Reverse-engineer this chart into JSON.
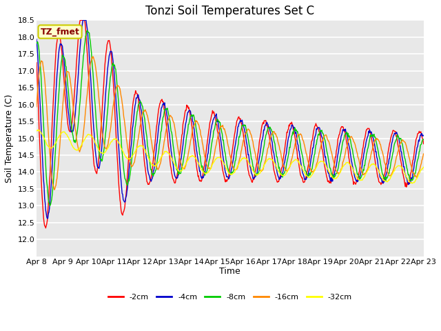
{
  "title": "Tonzi Soil Temperatures Set C",
  "xlabel": "Time",
  "ylabel": "Soil Temperature (C)",
  "ylim": [
    11.5,
    18.5
  ],
  "yticks": [
    12.0,
    12.5,
    13.0,
    13.5,
    14.0,
    14.5,
    15.0,
    15.5,
    16.0,
    16.5,
    17.0,
    17.5,
    18.0,
    18.5
  ],
  "xtick_labels": [
    "Apr 8",
    "Apr 9",
    "Apr 10",
    "Apr 11",
    "Apr 12",
    "Apr 13",
    "Apr 14",
    "Apr 15",
    "Apr 16",
    "Apr 17",
    "Apr 18",
    "Apr 19",
    "Apr 20",
    "Apr 21",
    "Apr 22",
    "Apr 23"
  ],
  "series_colors": [
    "#ff0000",
    "#0000cc",
    "#00cc00",
    "#ff8800",
    "#ffff00"
  ],
  "series_labels": [
    "-2cm",
    "-4cm",
    "-8cm",
    "-16cm",
    "-32cm"
  ],
  "legend_label": "TZ_fmet",
  "legend_bg": "#ffffcc",
  "legend_edge": "#cccc00",
  "legend_text_color": "#880000",
  "fig_bg": "#ffffff",
  "plot_bg": "#e8e8e8",
  "grid_color": "#ffffff",
  "title_fontsize": 12,
  "axis_fontsize": 9,
  "tick_fontsize": 8
}
